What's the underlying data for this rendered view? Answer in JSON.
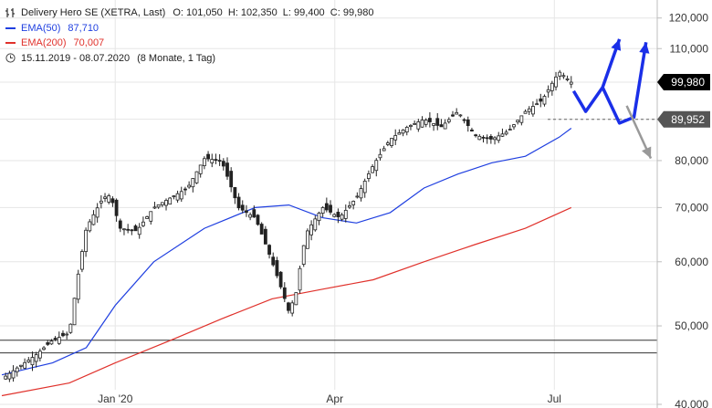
{
  "header": {
    "title": "Delivery Hero SE (XETRA, Last)",
    "ohlc": "O: 101,050  H: 102,350  L: 99,400  C: 99,980",
    "range_label": "15.11.2019 - 08.07.2020",
    "range_detail": "(8 Monate, 1 Tag)"
  },
  "colors": {
    "price": "#222222",
    "ema50": "#1f3fe0",
    "ema200": "#e0312b",
    "up_arrow": "#1a2fe8",
    "down_arrow": "#999999",
    "badge_last": "#000000",
    "badge_level": "#555555"
  },
  "icons": {
    "bars": "bar-chart-icon",
    "clock": "clock-icon"
  },
  "chart_data": {
    "type": "line",
    "title": "Delivery Hero SE (XETRA, Last)",
    "y_scale": "log",
    "ylim": [
      40000,
      125000
    ],
    "y_ticks": [
      40000,
      50000,
      60000,
      70000,
      80000,
      90000,
      100000,
      110000,
      120000
    ],
    "y_tick_labels": [
      "40,000",
      "50,000",
      "60,000",
      "70,000",
      "80,000",
      "90,000",
      "100,000",
      "110,000",
      "120,000"
    ],
    "x_range": [
      "2019-11-15",
      "2020-08-10"
    ],
    "x_ticks": [
      {
        "date": "2020-01-01",
        "label": "Jan '20"
      },
      {
        "date": "2020-04-01",
        "label": "Apr"
      },
      {
        "date": "2020-07-01",
        "label": "Jul"
      }
    ],
    "series": [
      {
        "name": "Delivery Hero SE",
        "style": "candles",
        "x": [
          "2019-11-15",
          "2019-11-22",
          "2019-11-29",
          "2019-12-06",
          "2019-12-13",
          "2019-12-20",
          "2019-12-27",
          "2019-12-30",
          "2020-01-03",
          "2020-01-10",
          "2020-01-17",
          "2020-01-24",
          "2020-01-31",
          "2020-02-07",
          "2020-02-14",
          "2020-02-21",
          "2020-02-28",
          "2020-03-06",
          "2020-03-13",
          "2020-03-16",
          "2020-03-20",
          "2020-03-27",
          "2020-04-03",
          "2020-04-10",
          "2020-04-17",
          "2020-04-24",
          "2020-05-01",
          "2020-05-08",
          "2020-05-15",
          "2020-05-22",
          "2020-05-29",
          "2020-06-05",
          "2020-06-12",
          "2020-06-19",
          "2020-06-26",
          "2020-07-03",
          "2020-07-08"
        ],
        "values": [
          43000,
          44500,
          46000,
          48000,
          49000,
          66000,
          72000,
          72500,
          66000,
          65500,
          70000,
          72000,
          74000,
          80500,
          80000,
          70000,
          68000,
          60000,
          52000,
          55000,
          65000,
          70000,
          68000,
          72000,
          79000,
          85000,
          88000,
          90000,
          88000,
          92000,
          86000,
          85000,
          87000,
          92000,
          95000,
          103000,
          99980
        ]
      },
      {
        "name": "EMA(50)",
        "value_label": "87,710",
        "x": [
          "2019-11-15",
          "2019-12-06",
          "2019-12-20",
          "2020-01-01",
          "2020-01-17",
          "2020-02-07",
          "2020-02-28",
          "2020-03-13",
          "2020-03-27",
          "2020-04-10",
          "2020-04-24",
          "2020-05-08",
          "2020-05-22",
          "2020-06-05",
          "2020-06-19",
          "2020-07-03",
          "2020-07-08"
        ],
        "values": [
          43500,
          45000,
          47000,
          53000,
          60000,
          66000,
          70000,
          70500,
          68000,
          67000,
          69000,
          74000,
          77000,
          79500,
          81000,
          85500,
          87710
        ]
      },
      {
        "name": "EMA(200)",
        "value_label": "70,007",
        "x": [
          "2019-11-15",
          "2019-12-13",
          "2020-01-01",
          "2020-01-24",
          "2020-02-14",
          "2020-03-06",
          "2020-03-27",
          "2020-04-17",
          "2020-05-08",
          "2020-05-29",
          "2020-06-19",
          "2020-07-08"
        ],
        "values": [
          41000,
          42500,
          45000,
          48000,
          51000,
          54000,
          55500,
          57000,
          60000,
          63000,
          66000,
          70007
        ]
      }
    ],
    "horizontal_lines": [
      48000,
      46300
    ],
    "dashed_level": 89952,
    "price_labels": [
      {
        "value": 99980,
        "label": "99,980",
        "kind": "last"
      },
      {
        "value": 89952,
        "label": "89,952",
        "kind": "level"
      }
    ],
    "scenario_up_1": {
      "x": [
        "2020-07-09",
        "2020-07-14",
        "2020-07-21",
        "2020-07-28"
      ],
      "values": [
        97500,
        92000,
        98500,
        113000
      ]
    },
    "scenario_up_2": {
      "x": [
        "2020-07-21",
        "2020-07-28",
        "2020-08-03",
        "2020-08-08"
      ],
      "values": [
        98500,
        89000,
        90500,
        112000
      ]
    },
    "scenario_down": {
      "x": [
        "2020-07-31",
        "2020-08-10"
      ],
      "values": [
        93500,
        80500
      ]
    }
  }
}
